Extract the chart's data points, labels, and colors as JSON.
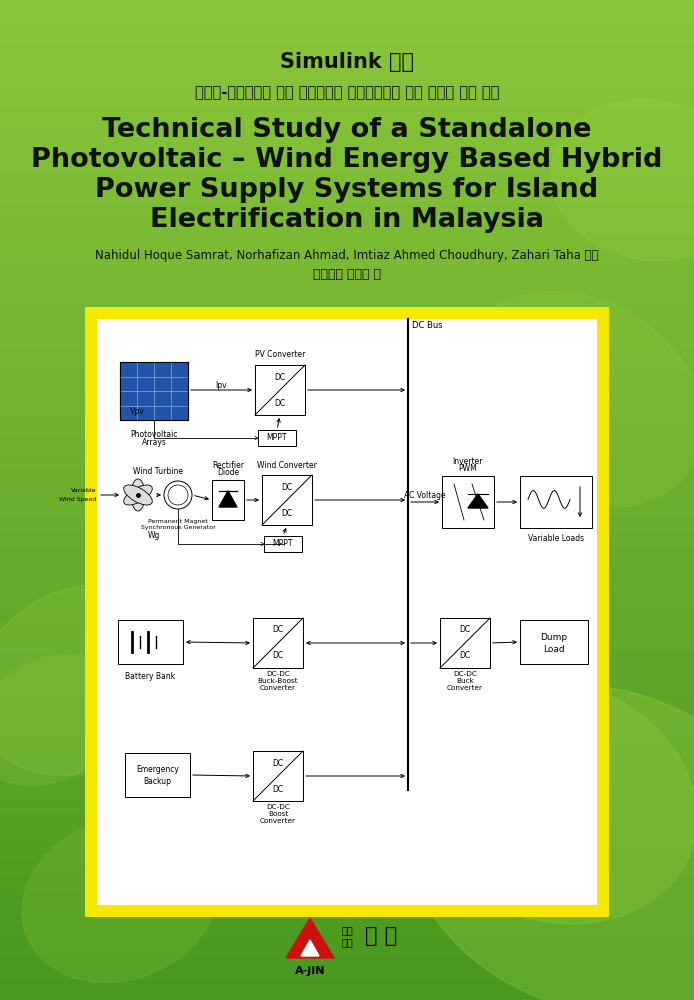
{
  "bg_color": "#6ab630",
  "title_korean_line1": "Simulink 활용",
  "title_korean_line2": "광전지-풍력에너지 기반 하이브리드 전원공급장치 독립 실행형 기술 연구",
  "title_english_line1": "Technical Study of a Standalone",
  "title_english_line2": "Photovoltaic – Wind Energy Based Hybrid",
  "title_english_line3": "Power Supply Systems for Island",
  "title_english_line4": "Electrification in Malaysia",
  "authors": "Nahidul Hoque Samrat, Norhafizan Ahmad, Imtiaz Ahmed Choudhury, Zahari Taha 공저",
  "editor": "창의과학 연구소 편",
  "publisher_brand": "A-JIN",
  "publisher_pub1": "도서",
  "publisher_pub2": "출판",
  "publisher_name": "아 진",
  "diagram_border_color": "#f5e800",
  "diagram_bg_color": "#ffffff"
}
